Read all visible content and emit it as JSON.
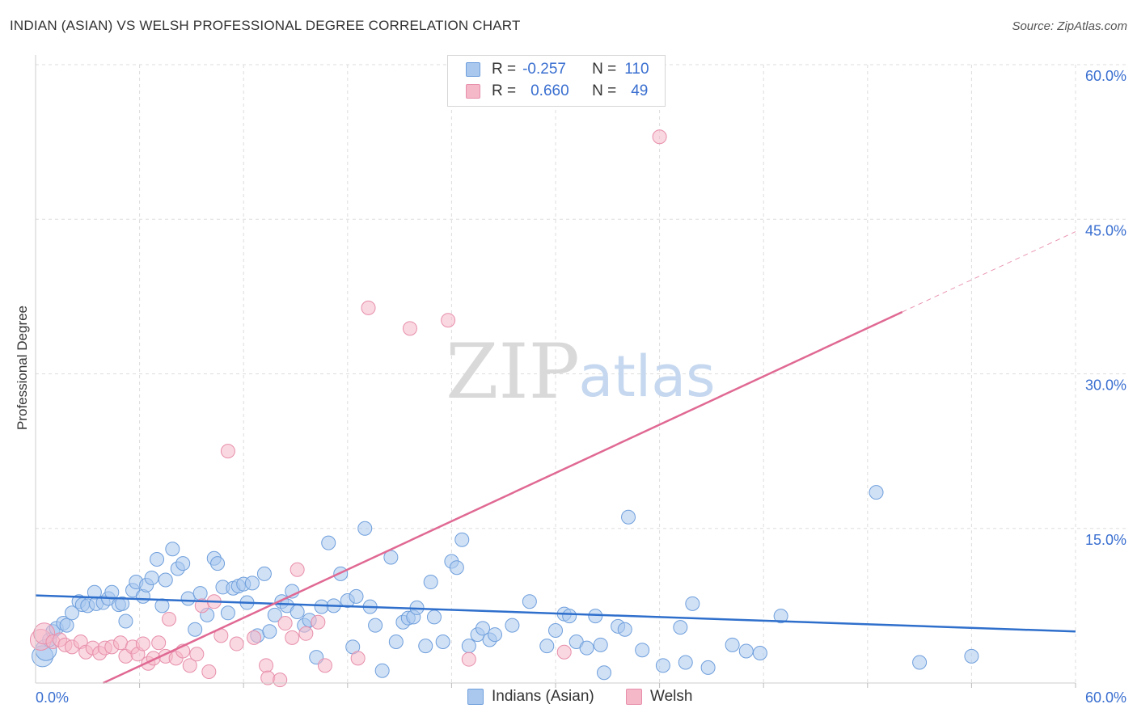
{
  "header": {
    "title": "INDIAN (ASIAN) VS WELSH PROFESSIONAL DEGREE CORRELATION CHART",
    "source": "Source: ZipAtlas.com"
  },
  "legend": {
    "rows": [
      {
        "r_label": "R =",
        "r_value": "-0.257",
        "n_label": "N =",
        "n_value": "110"
      },
      {
        "r_label": "R =",
        "r_value": "0.660",
        "n_label": "N =",
        "n_value": "49"
      }
    ]
  },
  "colors": {
    "blue_fill": "#aac8ee",
    "blue_stroke": "#6f9fdc",
    "blue_line": "#2f6fcc",
    "pink_fill": "#f5b8c9",
    "pink_stroke": "#e78fab",
    "pink_line": "#e06993",
    "axis_text": "#3a6fd0",
    "grid": "#dddddd"
  },
  "chart_data": {
    "type": "scatter",
    "title": "INDIAN (ASIAN) VS WELSH PROFESSIONAL DEGREE CORRELATION CHART",
    "xlabel": "",
    "ylabel": "Professional Degree",
    "xlim": [
      0,
      60
    ],
    "ylim": [
      0,
      60
    ],
    "x_tick_labels": [
      "0.0%",
      "60.0%"
    ],
    "y_ticks": [
      15,
      30,
      45,
      60
    ],
    "y_tick_labels": [
      "15.0%",
      "30.0%",
      "45.0%",
      "60.0%"
    ],
    "grid": true,
    "watermark": {
      "zip": "ZIP",
      "atlas": "atlas"
    },
    "series": [
      {
        "name": "Indians (Asian)",
        "r": -0.257,
        "n": 110,
        "trend": {
          "x0": 0,
          "y0": 8.5,
          "x1": 60,
          "y1": 5.0
        },
        "points": [
          [
            0.4,
            2.6
          ],
          [
            0.6,
            3.2
          ],
          [
            0.8,
            4.2
          ],
          [
            1.0,
            5.0
          ],
          [
            1.2,
            5.3
          ],
          [
            1.6,
            5.8
          ],
          [
            1.8,
            5.6
          ],
          [
            2.1,
            6.8
          ],
          [
            2.5,
            7.9
          ],
          [
            2.7,
            7.6
          ],
          [
            3.0,
            7.5
          ],
          [
            3.4,
            8.8
          ],
          [
            3.5,
            7.7
          ],
          [
            3.9,
            7.8
          ],
          [
            4.2,
            8.2
          ],
          [
            4.4,
            8.8
          ],
          [
            4.8,
            7.6
          ],
          [
            5.0,
            7.7
          ],
          [
            5.2,
            6.0
          ],
          [
            5.6,
            9.0
          ],
          [
            5.8,
            9.8
          ],
          [
            6.2,
            8.4
          ],
          [
            6.4,
            9.5
          ],
          [
            6.7,
            10.2
          ],
          [
            7.0,
            12.0
          ],
          [
            7.3,
            7.5
          ],
          [
            7.5,
            10.0
          ],
          [
            7.9,
            13.0
          ],
          [
            8.2,
            11.1
          ],
          [
            8.5,
            11.6
          ],
          [
            8.8,
            8.2
          ],
          [
            9.2,
            5.2
          ],
          [
            9.5,
            8.7
          ],
          [
            9.9,
            6.6
          ],
          [
            10.3,
            12.1
          ],
          [
            10.5,
            11.6
          ],
          [
            10.8,
            9.3
          ],
          [
            11.1,
            6.8
          ],
          [
            11.4,
            9.2
          ],
          [
            11.7,
            9.4
          ],
          [
            12.0,
            9.6
          ],
          [
            12.2,
            7.8
          ],
          [
            12.5,
            9.7
          ],
          [
            12.8,
            4.6
          ],
          [
            13.2,
            10.6
          ],
          [
            13.5,
            5.0
          ],
          [
            13.8,
            6.6
          ],
          [
            14.2,
            7.9
          ],
          [
            14.5,
            7.5
          ],
          [
            14.8,
            8.9
          ],
          [
            15.1,
            6.9
          ],
          [
            15.5,
            5.6
          ],
          [
            15.8,
            6.1
          ],
          [
            16.2,
            2.5
          ],
          [
            16.5,
            7.4
          ],
          [
            16.9,
            13.6
          ],
          [
            17.2,
            7.5
          ],
          [
            17.6,
            10.6
          ],
          [
            18.0,
            8.0
          ],
          [
            18.3,
            3.5
          ],
          [
            18.5,
            8.4
          ],
          [
            19.0,
            15.0
          ],
          [
            19.3,
            7.4
          ],
          [
            19.6,
            5.6
          ],
          [
            20.0,
            1.2
          ],
          [
            20.5,
            12.2
          ],
          [
            20.8,
            4.0
          ],
          [
            21.2,
            5.9
          ],
          [
            21.5,
            6.3
          ],
          [
            21.8,
            6.4
          ],
          [
            22.0,
            7.3
          ],
          [
            22.5,
            3.6
          ],
          [
            22.8,
            9.8
          ],
          [
            23.0,
            6.4
          ],
          [
            23.5,
            4.0
          ],
          [
            24.0,
            11.8
          ],
          [
            24.3,
            11.2
          ],
          [
            24.6,
            13.9
          ],
          [
            25.0,
            3.6
          ],
          [
            25.5,
            4.7
          ],
          [
            25.8,
            5.3
          ],
          [
            26.2,
            4.2
          ],
          [
            26.5,
            4.7
          ],
          [
            27.5,
            5.6
          ],
          [
            28.5,
            7.9
          ],
          [
            29.5,
            3.6
          ],
          [
            30.0,
            5.1
          ],
          [
            30.5,
            6.7
          ],
          [
            30.8,
            6.5
          ],
          [
            31.2,
            4.0
          ],
          [
            31.8,
            3.4
          ],
          [
            32.3,
            6.5
          ],
          [
            32.6,
            3.7
          ],
          [
            32.8,
            1.0
          ],
          [
            33.6,
            5.5
          ],
          [
            34.0,
            5.2
          ],
          [
            34.2,
            16.1
          ],
          [
            35.0,
            3.2
          ],
          [
            36.2,
            1.7
          ],
          [
            37.2,
            5.4
          ],
          [
            37.5,
            2.0
          ],
          [
            37.9,
            7.7
          ],
          [
            38.8,
            1.5
          ],
          [
            40.2,
            3.7
          ],
          [
            41.0,
            3.1
          ],
          [
            41.8,
            2.9
          ],
          [
            43.0,
            6.5
          ],
          [
            48.5,
            18.5
          ],
          [
            51.0,
            2.0
          ],
          [
            54.0,
            2.6
          ]
        ]
      },
      {
        "name": "Welsh",
        "r": 0.66,
        "n": 49,
        "trend": {
          "x0": 3.9,
          "y0": 0,
          "x1": 50.0,
          "y1": 36.0,
          "dash_x1": 60,
          "dash_y1": 43.8
        },
        "points": [
          [
            0.3,
            4.2
          ],
          [
            0.5,
            4.8
          ],
          [
            1.0,
            4.0
          ],
          [
            1.4,
            4.2
          ],
          [
            1.7,
            3.7
          ],
          [
            2.1,
            3.5
          ],
          [
            2.6,
            4.0
          ],
          [
            2.9,
            3.0
          ],
          [
            3.3,
            3.4
          ],
          [
            3.7,
            2.9
          ],
          [
            4.0,
            3.4
          ],
          [
            4.4,
            3.5
          ],
          [
            4.9,
            3.9
          ],
          [
            5.2,
            2.6
          ],
          [
            5.6,
            3.5
          ],
          [
            5.9,
            2.8
          ],
          [
            6.2,
            3.8
          ],
          [
            6.5,
            1.9
          ],
          [
            6.8,
            2.4
          ],
          [
            7.1,
            3.9
          ],
          [
            7.5,
            2.6
          ],
          [
            7.7,
            6.2
          ],
          [
            8.1,
            2.4
          ],
          [
            8.5,
            3.1
          ],
          [
            8.9,
            1.7
          ],
          [
            9.3,
            2.8
          ],
          [
            9.6,
            7.5
          ],
          [
            10.0,
            1.1
          ],
          [
            10.3,
            7.9
          ],
          [
            10.7,
            4.6
          ],
          [
            11.1,
            22.5
          ],
          [
            11.6,
            3.8
          ],
          [
            12.6,
            4.4
          ],
          [
            13.3,
            1.7
          ],
          [
            13.4,
            0.5
          ],
          [
            14.1,
            0.3
          ],
          [
            14.4,
            5.8
          ],
          [
            14.8,
            4.4
          ],
          [
            15.1,
            11.0
          ],
          [
            15.6,
            4.8
          ],
          [
            16.3,
            5.9
          ],
          [
            16.7,
            1.7
          ],
          [
            18.6,
            2.4
          ],
          [
            19.2,
            36.4
          ],
          [
            21.6,
            34.4
          ],
          [
            23.8,
            35.2
          ],
          [
            25.0,
            2.3
          ],
          [
            36.0,
            53.0
          ],
          [
            30.5,
            3.0
          ]
        ]
      }
    ]
  },
  "bottom_legend": {
    "items": [
      "Indians (Asian)",
      "Welsh"
    ]
  }
}
